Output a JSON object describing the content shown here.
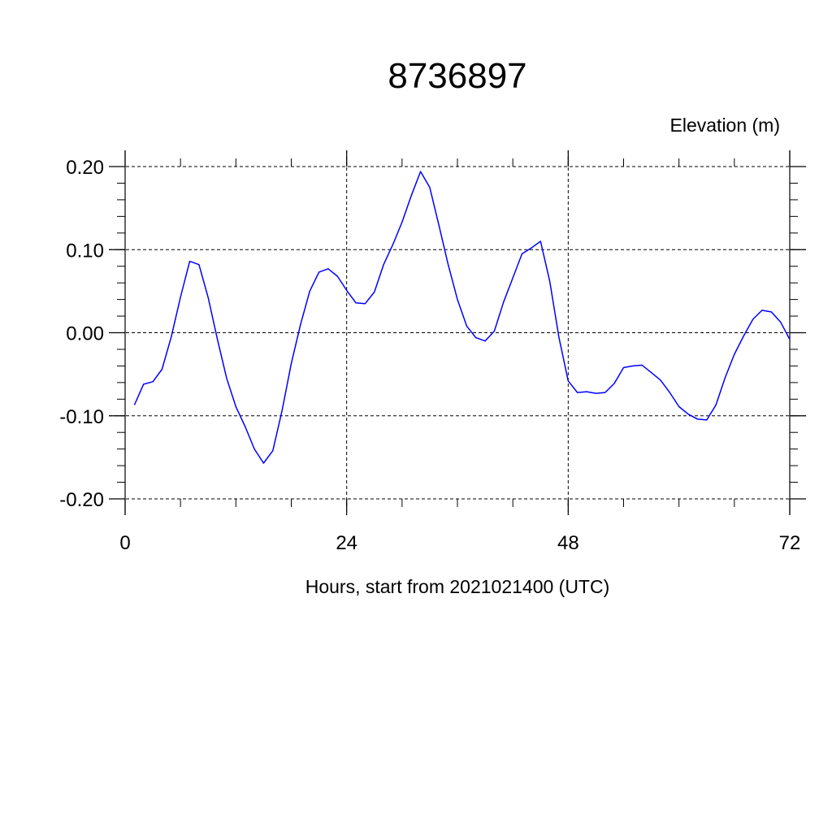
{
  "chart_data": {
    "type": "line",
    "title": "8736897",
    "ylabel": "Elevation (m)",
    "xlabel": "Hours, start from 2021021400 (UTC)",
    "xlim": [
      0,
      72
    ],
    "ylim": [
      -0.2,
      0.2
    ],
    "x_ticks": [
      0,
      24,
      48,
      72
    ],
    "x_tick_labels": [
      "0",
      "24",
      "48",
      "72"
    ],
    "y_ticks": [
      -0.2,
      -0.1,
      0.0,
      0.1,
      0.2
    ],
    "y_tick_labels": [
      "-0.20",
      "-0.10",
      "0.00",
      "0.10",
      "0.20"
    ],
    "grid": true,
    "line_color": "#0000ff",
    "series": [
      {
        "x": [
          1,
          2,
          3,
          4,
          5,
          6,
          7,
          8,
          9,
          10,
          11,
          12,
          13,
          14,
          15,
          16,
          17,
          18,
          19,
          20,
          21,
          22,
          23,
          24,
          25,
          26,
          27,
          28,
          29,
          30,
          31,
          32,
          33,
          34,
          35,
          36,
          37,
          38,
          39,
          40,
          41,
          42,
          43,
          44,
          45,
          46,
          47,
          48,
          49,
          50,
          51,
          52,
          53,
          54,
          55,
          56,
          57,
          58,
          59,
          60,
          61,
          62,
          63,
          64,
          65,
          66,
          67,
          68,
          69,
          70,
          71,
          72
        ],
        "values": [
          -0.087,
          -0.062,
          -0.059,
          -0.044,
          -0.005,
          0.043,
          0.086,
          0.082,
          0.042,
          -0.008,
          -0.055,
          -0.089,
          -0.113,
          -0.14,
          -0.157,
          -0.142,
          -0.094,
          -0.037,
          0.01,
          0.05,
          0.073,
          0.077,
          0.068,
          0.051,
          0.036,
          0.035,
          0.049,
          0.082,
          0.106,
          0.133,
          0.165,
          0.194,
          0.175,
          0.129,
          0.082,
          0.04,
          0.008,
          -0.006,
          -0.01,
          0.002,
          0.037,
          0.066,
          0.095,
          0.102,
          0.11,
          0.062,
          -0.006,
          -0.058,
          -0.072,
          -0.071,
          -0.073,
          -0.072,
          -0.061,
          -0.042,
          -0.04,
          -0.039,
          -0.048,
          -0.057,
          -0.072,
          -0.089,
          -0.098,
          -0.104,
          -0.105,
          -0.087,
          -0.054,
          -0.026,
          -0.004,
          0.016,
          0.027,
          0.025,
          0.013,
          -0.008
        ]
      }
    ]
  }
}
